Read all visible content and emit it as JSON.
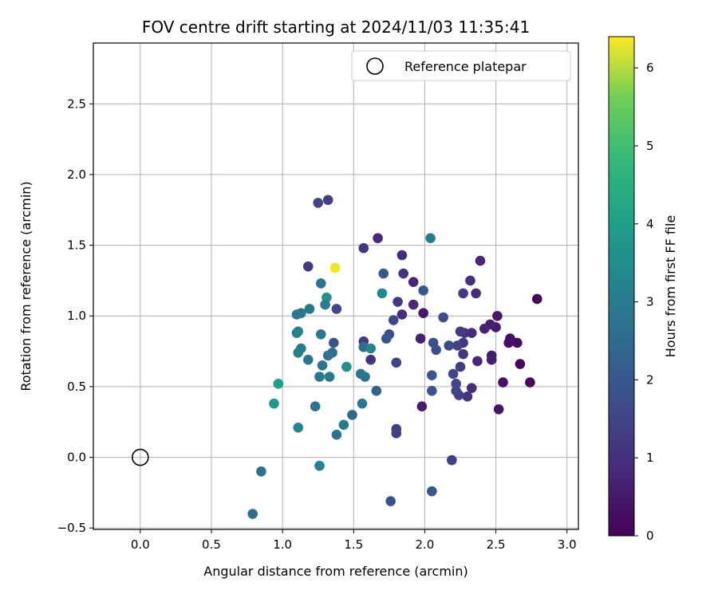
{
  "chart_data": {
    "type": "scatter",
    "title": "FOV centre drift starting at 2024/11/03 11:35:41",
    "xlabel": "Angular distance from reference (arcmin)",
    "ylabel": "Rotation from reference (arcmin)",
    "xlim": [
      -0.33,
      3.08
    ],
    "ylim": [
      -0.51,
      2.93
    ],
    "xticks": [
      0.0,
      0.5,
      1.0,
      1.5,
      2.0,
      2.5,
      3.0
    ],
    "xtick_labels": [
      "0.0",
      "0.5",
      "1.0",
      "1.5",
      "2.0",
      "2.5",
      "3.0"
    ],
    "yticks": [
      -0.5,
      0.0,
      0.5,
      1.0,
      1.5,
      2.0,
      2.5
    ],
    "ytick_labels": [
      "−0.5",
      "0.0",
      "0.5",
      "1.0",
      "1.5",
      "2.0",
      "2.5"
    ],
    "grid": true,
    "legend": {
      "position": "top-right",
      "entries": [
        "Reference platepar"
      ]
    },
    "reference_point": {
      "x": 0.0,
      "y": 0.0,
      "label": "Reference platepar"
    },
    "colorbar": {
      "label": "Hours from first FF file",
      "colormap": "viridis",
      "min": 0.0,
      "max": 6.4,
      "ticks": [
        0,
        1,
        2,
        3,
        4,
        5,
        6
      ],
      "tick_labels": [
        "0",
        "1",
        "2",
        "3",
        "4",
        "5",
        "6"
      ]
    },
    "points": [
      {
        "x": 2.79,
        "y": 1.12,
        "c": 0.05
      },
      {
        "x": 2.74,
        "y": 0.53,
        "c": 0.1
      },
      {
        "x": 2.67,
        "y": 0.66,
        "c": 0.15
      },
      {
        "x": 2.65,
        "y": 0.81,
        "c": 0.2
      },
      {
        "x": 2.6,
        "y": 0.84,
        "c": 0.25
      },
      {
        "x": 2.59,
        "y": 0.81,
        "c": 0.3
      },
      {
        "x": 2.55,
        "y": 0.53,
        "c": 0.35
      },
      {
        "x": 2.52,
        "y": 0.34,
        "c": 0.4
      },
      {
        "x": 2.51,
        "y": 1.0,
        "c": 0.45
      },
      {
        "x": 2.5,
        "y": 0.92,
        "c": 0.5
      },
      {
        "x": 2.47,
        "y": 0.72,
        "c": 0.55
      },
      {
        "x": 2.47,
        "y": 0.69,
        "c": 0.6
      },
      {
        "x": 2.46,
        "y": 0.94,
        "c": 0.65
      },
      {
        "x": 2.42,
        "y": 0.91,
        "c": 0.7
      },
      {
        "x": 2.39,
        "y": 1.39,
        "c": 0.75
      },
      {
        "x": 2.37,
        "y": 0.68,
        "c": 0.8
      },
      {
        "x": 2.36,
        "y": 1.16,
        "c": 0.85
      },
      {
        "x": 2.33,
        "y": 0.88,
        "c": 0.9
      },
      {
        "x": 2.33,
        "y": 0.49,
        "c": 0.95
      },
      {
        "x": 2.32,
        "y": 1.25,
        "c": 1.0
      },
      {
        "x": 2.3,
        "y": 0.43,
        "c": 1.05
      },
      {
        "x": 2.28,
        "y": 0.88,
        "c": 1.1
      },
      {
        "x": 2.27,
        "y": 0.81,
        "c": 1.15
      },
      {
        "x": 2.27,
        "y": 0.73,
        "c": 1.2
      },
      {
        "x": 2.27,
        "y": 1.16,
        "c": 1.25
      },
      {
        "x": 2.25,
        "y": 0.89,
        "c": 1.3
      },
      {
        "x": 2.25,
        "y": 0.64,
        "c": 1.35
      },
      {
        "x": 2.24,
        "y": 0.44,
        "c": 1.4
      },
      {
        "x": 2.23,
        "y": 0.79,
        "c": 1.45
      },
      {
        "x": 2.22,
        "y": 0.47,
        "c": 1.5
      },
      {
        "x": 2.22,
        "y": 0.52,
        "c": 1.55
      },
      {
        "x": 2.2,
        "y": 0.59,
        "c": 1.6
      },
      {
        "x": 2.17,
        "y": 0.79,
        "c": 1.65
      },
      {
        "x": 2.13,
        "y": 0.99,
        "c": 1.7
      },
      {
        "x": 2.08,
        "y": 0.76,
        "c": 1.75
      },
      {
        "x": 2.06,
        "y": 0.81,
        "c": 1.8
      },
      {
        "x": 2.05,
        "y": 0.58,
        "c": 1.85
      },
      {
        "x": 2.05,
        "y": 0.47,
        "c": 1.9
      },
      {
        "x": 2.05,
        "y": -0.24,
        "c": 1.95
      },
      {
        "x": 1.99,
        "y": 1.18,
        "c": 2.0
      },
      {
        "x": 1.99,
        "y": 1.02,
        "c": 0.45
      },
      {
        "x": 1.98,
        "y": 0.36,
        "c": 0.55
      },
      {
        "x": 1.97,
        "y": 0.84,
        "c": 0.65
      },
      {
        "x": 1.92,
        "y": 1.24,
        "c": 0.75
      },
      {
        "x": 1.92,
        "y": 1.08,
        "c": 0.85
      },
      {
        "x": 1.84,
        "y": 1.43,
        "c": 0.9
      },
      {
        "x": 1.84,
        "y": 1.01,
        "c": 1.0
      },
      {
        "x": 1.85,
        "y": 1.3,
        "c": 1.1
      },
      {
        "x": 1.81,
        "y": 1.1,
        "c": 1.2
      },
      {
        "x": 1.8,
        "y": 0.2,
        "c": 1.3
      },
      {
        "x": 1.8,
        "y": 0.17,
        "c": 1.4
      },
      {
        "x": 1.8,
        "y": 0.67,
        "c": 1.5
      },
      {
        "x": 1.78,
        "y": 0.97,
        "c": 1.6
      },
      {
        "x": 1.75,
        "y": 0.87,
        "c": 1.7
      },
      {
        "x": 1.76,
        "y": -0.31,
        "c": 1.8
      },
      {
        "x": 1.73,
        "y": 0.84,
        "c": 1.9
      },
      {
        "x": 1.71,
        "y": 1.3,
        "c": 2.0
      },
      {
        "x": 1.67,
        "y": 1.55,
        "c": 0.8
      },
      {
        "x": 1.66,
        "y": 0.47,
        "c": 2.2
      },
      {
        "x": 1.62,
        "y": 0.69,
        "c": 1.05
      },
      {
        "x": 1.57,
        "y": 1.48,
        "c": 1.15
      },
      {
        "x": 1.57,
        "y": 0.82,
        "c": 1.25
      },
      {
        "x": 1.57,
        "y": 0.78,
        "c": 2.6
      },
      {
        "x": 1.58,
        "y": 0.57,
        "c": 2.7
      },
      {
        "x": 1.56,
        "y": 0.38,
        "c": 2.8
      },
      {
        "x": 1.55,
        "y": 0.59,
        "c": 2.9
      },
      {
        "x": 1.49,
        "y": 0.3,
        "c": 2.5
      },
      {
        "x": 1.45,
        "y": 0.64,
        "c": 3.6
      },
      {
        "x": 1.43,
        "y": 0.23,
        "c": 3.0
      },
      {
        "x": 1.38,
        "y": 0.16,
        "c": 2.7
      },
      {
        "x": 1.37,
        "y": 1.34,
        "c": 6.3
      },
      {
        "x": 1.38,
        "y": 1.05,
        "c": 1.5
      },
      {
        "x": 1.36,
        "y": 0.81,
        "c": 1.9
      },
      {
        "x": 1.35,
        "y": 0.74,
        "c": 2.6
      },
      {
        "x": 1.32,
        "y": 0.72,
        "c": 2.7
      },
      {
        "x": 1.33,
        "y": 0.57,
        "c": 2.9
      },
      {
        "x": 1.32,
        "y": 1.82,
        "c": 1.35
      },
      {
        "x": 1.31,
        "y": 1.13,
        "c": 3.7
      },
      {
        "x": 1.3,
        "y": 1.08,
        "c": 3.0
      },
      {
        "x": 1.28,
        "y": 0.65,
        "c": 2.8
      },
      {
        "x": 1.27,
        "y": 1.23,
        "c": 2.7
      },
      {
        "x": 1.27,
        "y": 0.87,
        "c": 2.9
      },
      {
        "x": 1.26,
        "y": 0.57,
        "c": 2.85
      },
      {
        "x": 1.26,
        "y": -0.06,
        "c": 3.2
      },
      {
        "x": 1.25,
        "y": 1.8,
        "c": 1.45
      },
      {
        "x": 1.23,
        "y": 0.36,
        "c": 2.7
      },
      {
        "x": 1.18,
        "y": 1.35,
        "c": 1.2
      },
      {
        "x": 1.19,
        "y": 1.05,
        "c": 2.9
      },
      {
        "x": 1.18,
        "y": 0.69,
        "c": 2.8
      },
      {
        "x": 1.13,
        "y": 1.02,
        "c": 2.9
      },
      {
        "x": 1.13,
        "y": 0.77,
        "c": 2.95
      },
      {
        "x": 1.11,
        "y": 0.74,
        "c": 3.1
      },
      {
        "x": 1.11,
        "y": 0.21,
        "c": 3.3
      },
      {
        "x": 1.1,
        "y": 1.01,
        "c": 2.85
      },
      {
        "x": 1.1,
        "y": 0.88,
        "c": 2.95
      },
      {
        "x": 1.11,
        "y": 0.89,
        "c": 3.25
      },
      {
        "x": 0.97,
        "y": 0.52,
        "c": 4.0
      },
      {
        "x": 0.94,
        "y": 0.38,
        "c": 3.8
      },
      {
        "x": 0.85,
        "y": -0.1,
        "c": 2.7
      },
      {
        "x": 0.79,
        "y": -0.4,
        "c": 2.6
      },
      {
        "x": 2.04,
        "y": 1.55,
        "c": 3.0
      },
      {
        "x": 1.7,
        "y": 1.16,
        "c": 3.4
      },
      {
        "x": 1.62,
        "y": 0.77,
        "c": 3.3
      },
      {
        "x": 2.19,
        "y": -0.02,
        "c": 1.4
      }
    ]
  }
}
